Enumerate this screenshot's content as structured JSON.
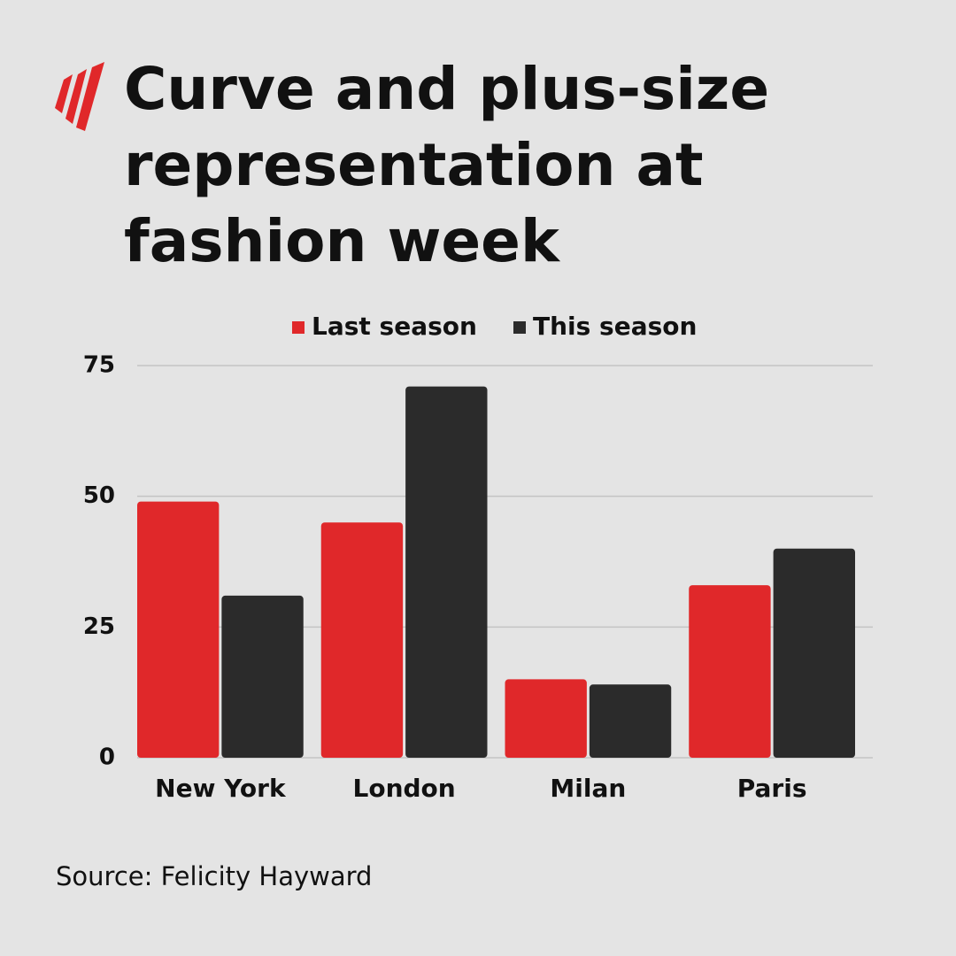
{
  "chart_data": {
    "type": "bar",
    "title": "Curve and plus-size representation at fashion week",
    "categories": [
      "New York",
      "London",
      "Milan",
      "Paris"
    ],
    "series": [
      {
        "name": "Last season",
        "color": "#e0282a",
        "values": [
          49,
          45,
          15,
          33
        ]
      },
      {
        "name": "This season",
        "color": "#2b2b2b",
        "values": [
          31,
          71,
          14,
          40
        ]
      }
    ],
    "ylim": [
      0,
      75
    ],
    "yticks": [
      0,
      25,
      50,
      75
    ],
    "grid": true,
    "legend": "top",
    "source": "Source: Felicity Hayward"
  }
}
